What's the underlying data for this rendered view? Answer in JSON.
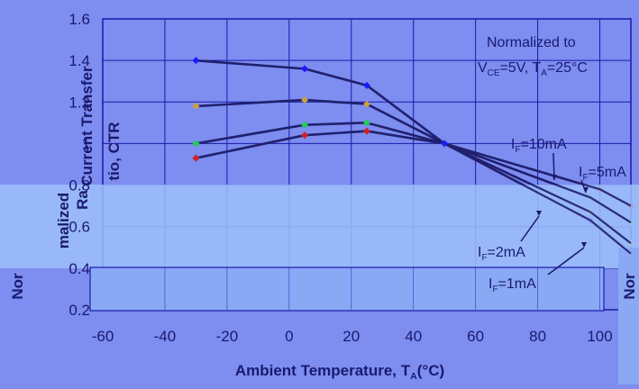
{
  "chart_data": {
    "type": "line",
    "xlabel": "Ambient Temperature, T",
    "xlabel_sub": "A",
    "xlabel_unit": "(°C)",
    "ylabel_parts": [
      "Nor",
      "malized",
      "Current Transfer",
      "Ra",
      "tio, CTR",
      "Nor"
    ],
    "annotation_line1": "Normalized to",
    "annotation_line2_parts": [
      "V",
      "CE",
      "=5V, T",
      "A",
      "=25°C"
    ],
    "xlim": [
      -60,
      110
    ],
    "ylim": [
      0.2,
      1.6
    ],
    "x_ticks": [
      -60,
      -40,
      -20,
      0,
      20,
      40,
      60,
      80,
      100
    ],
    "y_ticks": [
      0.2,
      0.4,
      0.6,
      0.8,
      1,
      1.2,
      1.4,
      1.6
    ],
    "y_tick_labels": [
      "0.2",
      "0.4",
      "0.6",
      "0.8",
      "1",
      "1.2",
      "1.4",
      "1.6"
    ],
    "grid": true,
    "series": [
      {
        "name": "I_F=10mA",
        "label_parts": [
          "I",
          "F",
          "=10mA"
        ],
        "marker_color": "#cc2222",
        "x": [
          -30,
          5,
          25,
          50,
          100,
          110
        ],
        "y": [
          0.93,
          1.04,
          1.06,
          1.0,
          0.78,
          0.7
        ]
      },
      {
        "name": "I_F=5mA",
        "label_parts": [
          "I",
          "F",
          "=5mA"
        ],
        "marker_color": "#22cc55",
        "x": [
          -30,
          5,
          25,
          50,
          97,
          110
        ],
        "y": [
          1.0,
          1.09,
          1.1,
          1.0,
          0.74,
          0.62
        ]
      },
      {
        "name": "I_F=2mA",
        "label_parts": [
          "I",
          "F",
          "=2mA"
        ],
        "marker_color": "#c9a040",
        "x": [
          -30,
          5,
          25,
          50,
          97,
          110
        ],
        "y": [
          1.18,
          1.21,
          1.19,
          1.0,
          0.67,
          0.52
        ]
      },
      {
        "name": "I_F=1mA",
        "label_parts": [
          "I",
          "F",
          "=1mA"
        ],
        "marker_color": "#1a1aff",
        "x": [
          -30,
          5,
          25,
          50,
          97,
          110
        ],
        "y": [
          1.4,
          1.36,
          1.28,
          1.0,
          0.63,
          0.47
        ]
      }
    ]
  },
  "colors": {
    "background": "#7d8df0",
    "plot_bg": "#7d8df0",
    "gridline": "#1a1aa8",
    "line": "#20206e",
    "text": "#1a1a6e",
    "overlay_light": "#9cc0fb",
    "overlay_mid": "#8aa9f5"
  }
}
